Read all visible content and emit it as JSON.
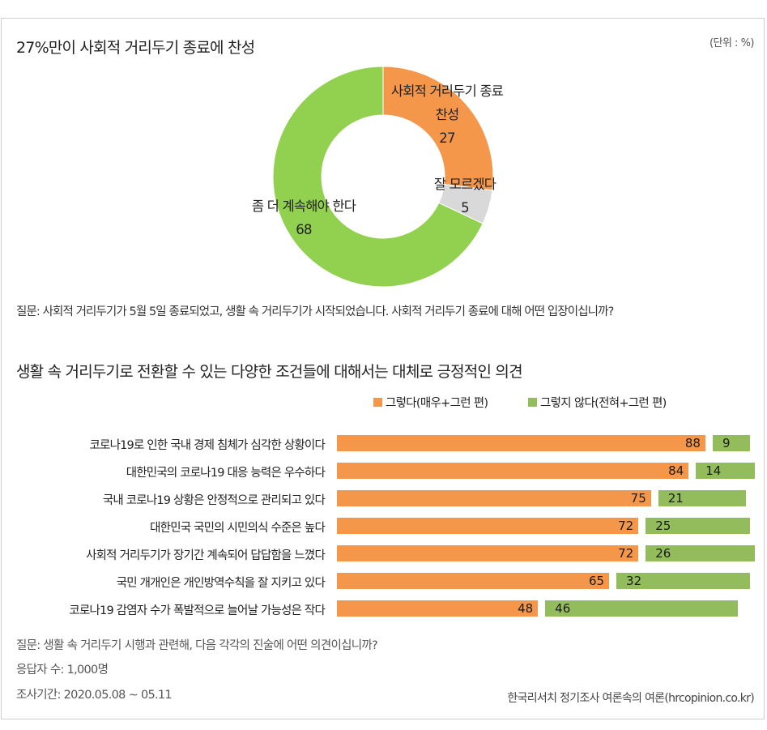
{
  "colors": {
    "agree": "#f5974a",
    "disagree": "#93bd5c",
    "donut_green": "#92d050",
    "donut_gray": "#d9d9d9"
  },
  "top": {
    "title": "27%만이 사회적 거리두기 종료에 찬성",
    "unit": "(단위 : %)",
    "question": "질문: 사회적 거리두기가 5월 5일 종료되었고, 생활 속 거리두기가 시작되었습니다. 사회적 거리두기 종료에 대해 어떤 입장이십니까?"
  },
  "bottom": {
    "title": "생활 속 거리두기로 전환할 수 있는 다양한 조건들에 대해서는 대체로 긍정적인 의견",
    "question": "질문: 생활 속 거리두기 시행과 관련해, 다음 각각의 진술에 어떤 의견이십니까?",
    "respondents": "응답자 수: 1,000명",
    "period": "조사기간: 2020.05.08 ~ 05.11",
    "source": "한국리서치 정기조사 여론속의 여론(hrcopinion.co.kr)"
  },
  "chart_data": [
    {
      "type": "pie",
      "title": "27%만이 사회적 거리두기 종료에 찬성",
      "slices": [
        {
          "label_line1": "사회적 거리두기 종료",
          "label_line2": "찬성",
          "value": 27,
          "color": "#f5974a"
        },
        {
          "label_line1": "잘 모르겠다",
          "label_line2": "",
          "value": 5,
          "color": "#d9d9d9"
        },
        {
          "label_line1": "좀 더 계속해야 한다",
          "label_line2": "",
          "value": 68,
          "color": "#92d050"
        }
      ]
    },
    {
      "type": "bar",
      "orientation": "horizontal",
      "title": "생활 속 거리두기로 전환할 수 있는 다양한 조건들에 대해서는 대체로 긍정적인 의견",
      "legend": [
        "그렇다(매우+그런 편)",
        "그렇지 않다(전혀+그런 편)"
      ],
      "categories": [
        "코로나19로 인한 국내 경제 침체가 심각한 상황이다",
        "대한민국의 코로나19 대응 능력은 우수하다",
        "국내 코로나19 상황은 안정적으로 관리되고 있다",
        "대한민국 국민의 시민의식 수준은 높다",
        "사회적 거리두기가 장기간 계속되어 답답함을 느꼈다",
        "국민 개개인은 개인방역수칙을 잘 지키고 있다",
        "코로나19 감염자 수가 폭발적으로 늘어날 가능성은 작다"
      ],
      "series": [
        {
          "name": "그렇다(매우+그런 편)",
          "values": [
            88,
            84,
            75,
            72,
            72,
            65,
            48
          ]
        },
        {
          "name": "그렇지 않다(전혀+그런 편)",
          "values": [
            9,
            14,
            21,
            25,
            26,
            32,
            46
          ]
        }
      ],
      "xlim": [
        0,
        100
      ]
    }
  ]
}
